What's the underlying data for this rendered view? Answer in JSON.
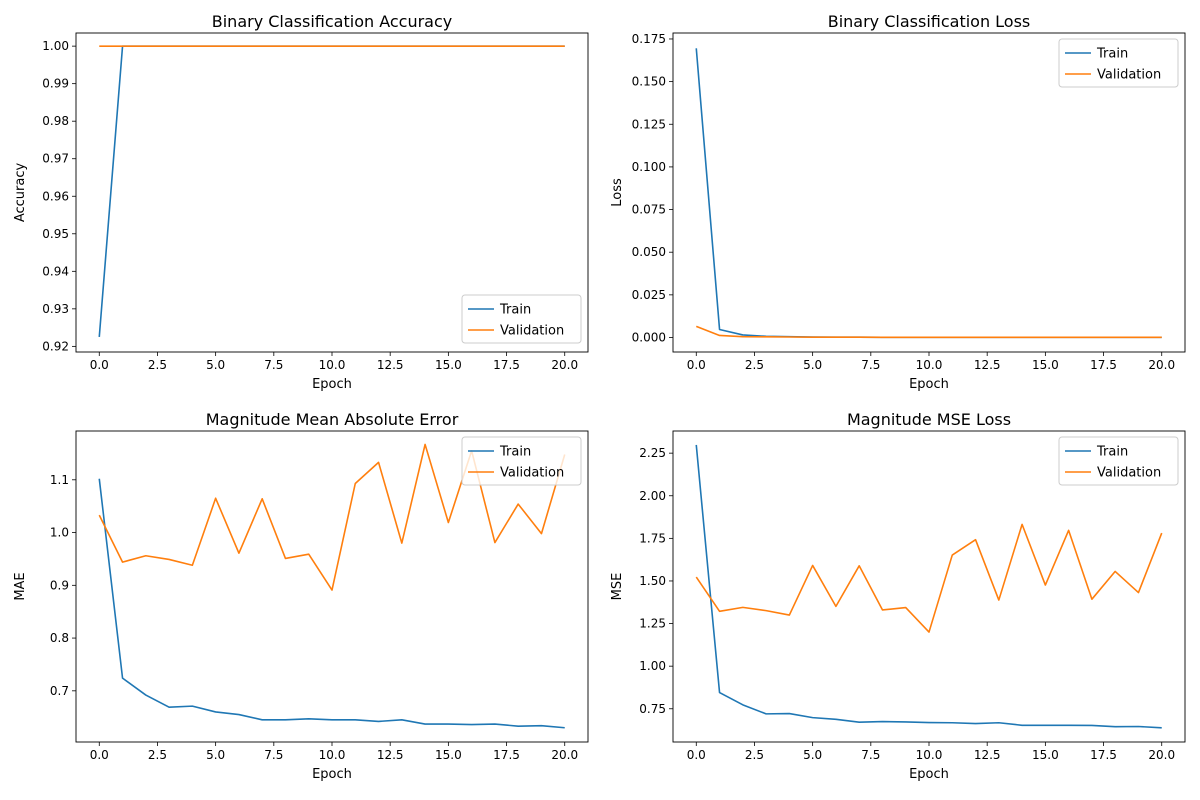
{
  "colors": {
    "train": "#1f77b4",
    "validation": "#ff7f0e"
  },
  "chart_data": [
    {
      "type": "line",
      "title": "Binary Classification Accuracy",
      "xlabel": "Epoch",
      "ylabel": "Accuracy",
      "xlim": [
        -1,
        21
      ],
      "ylim": [
        0.9185,
        1.0035
      ],
      "xticks": [
        0.0,
        2.5,
        5.0,
        7.5,
        10.0,
        12.5,
        15.0,
        17.5,
        20.0
      ],
      "xtick_labels": [
        "0.0",
        "2.5",
        "5.0",
        "7.5",
        "10.0",
        "12.5",
        "15.0",
        "17.5",
        "20.0"
      ],
      "yticks": [
        0.92,
        0.93,
        0.94,
        0.95,
        0.96,
        0.97,
        0.98,
        0.99,
        1.0
      ],
      "ytick_labels": [
        "0.92",
        "0.93",
        "0.94",
        "0.95",
        "0.96",
        "0.97",
        "0.98",
        "0.99",
        "1.00"
      ],
      "legend_position": "lower-right",
      "x": [
        0,
        1,
        2,
        3,
        4,
        5,
        6,
        7,
        8,
        9,
        10,
        11,
        12,
        13,
        14,
        15,
        16,
        17,
        18,
        19,
        20
      ],
      "series": [
        {
          "name": "Train",
          "values": [
            0.9225,
            1.0,
            1.0,
            1.0,
            1.0,
            1.0,
            1.0,
            1.0,
            1.0,
            1.0,
            1.0,
            1.0,
            1.0,
            1.0,
            1.0,
            1.0,
            1.0,
            1.0,
            1.0,
            1.0,
            1.0
          ]
        },
        {
          "name": "Validation",
          "values": [
            1.0,
            1.0,
            1.0,
            1.0,
            1.0,
            1.0,
            1.0,
            1.0,
            1.0,
            1.0,
            1.0,
            1.0,
            1.0,
            1.0,
            1.0,
            1.0,
            1.0,
            1.0,
            1.0,
            1.0,
            1.0
          ]
        }
      ]
    },
    {
      "type": "line",
      "title": "Binary Classification Loss",
      "xlabel": "Epoch",
      "ylabel": "Loss",
      "xlim": [
        -1,
        21
      ],
      "ylim": [
        -0.0085,
        0.1785
      ],
      "xticks": [
        0.0,
        2.5,
        5.0,
        7.5,
        10.0,
        12.5,
        15.0,
        17.5,
        20.0
      ],
      "xtick_labels": [
        "0.0",
        "2.5",
        "5.0",
        "7.5",
        "10.0",
        "12.5",
        "15.0",
        "17.5",
        "20.0"
      ],
      "yticks": [
        0.0,
        0.025,
        0.05,
        0.075,
        0.1,
        0.125,
        0.15,
        0.175
      ],
      "ytick_labels": [
        "0.000",
        "0.025",
        "0.050",
        "0.075",
        "0.100",
        "0.125",
        "0.150",
        "0.175"
      ],
      "legend_position": "top-right",
      "x": [
        0,
        1,
        2,
        3,
        4,
        5,
        6,
        7,
        8,
        9,
        10,
        11,
        12,
        13,
        14,
        15,
        16,
        17,
        18,
        19,
        20
      ],
      "series": [
        {
          "name": "Train",
          "values": [
            0.1695,
            0.0047,
            0.0015,
            0.0007,
            0.0005,
            0.0003,
            0.0002,
            0.0002,
            0.0001,
            0.0001,
            0.0001,
            0.0001,
            0.0001,
            0.0001,
            0.0001,
            0.0001,
            0.0001,
            0.0001,
            0.0001,
            0.0001,
            0.0001
          ]
        },
        {
          "name": "Validation",
          "values": [
            0.0065,
            0.0012,
            0.0005,
            0.0004,
            0.0003,
            0.0002,
            0.0002,
            0.0002,
            0.0001,
            0.0001,
            0.0001,
            0.0001,
            0.0001,
            0.0001,
            0.0001,
            0.0001,
            0.0001,
            0.0001,
            0.0001,
            0.0001,
            0.0001
          ]
        }
      ]
    },
    {
      "type": "line",
      "title": "Magnitude Mean Absolute Error",
      "xlabel": "Epoch",
      "ylabel": "MAE",
      "xlim": [
        -1,
        21
      ],
      "ylim": [
        0.603,
        1.1925
      ],
      "xticks": [
        0.0,
        2.5,
        5.0,
        7.5,
        10.0,
        12.5,
        15.0,
        17.5,
        20.0
      ],
      "xtick_labels": [
        "0.0",
        "2.5",
        "5.0",
        "7.5",
        "10.0",
        "12.5",
        "15.0",
        "17.5",
        "20.0"
      ],
      "yticks": [
        0.7,
        0.8,
        0.9,
        1.0,
        1.1
      ],
      "ytick_labels": [
        "0.7",
        "0.8",
        "0.9",
        "1.0",
        "1.1"
      ],
      "legend_position": "top-right",
      "x": [
        0,
        1,
        2,
        3,
        4,
        5,
        6,
        7,
        8,
        9,
        10,
        11,
        12,
        13,
        14,
        15,
        16,
        17,
        18,
        19,
        20
      ],
      "series": [
        {
          "name": "Train",
          "values": [
            1.102,
            0.724,
            0.692,
            0.669,
            0.671,
            0.66,
            0.655,
            0.645,
            0.645,
            0.647,
            0.645,
            0.645,
            0.642,
            0.645,
            0.637,
            0.637,
            0.636,
            0.637,
            0.633,
            0.634,
            0.63
          ]
        },
        {
          "name": "Validation",
          "values": [
            1.033,
            0.944,
            0.956,
            0.949,
            0.938,
            1.065,
            0.961,
            1.064,
            0.951,
            0.959,
            0.891,
            1.093,
            1.133,
            0.98,
            1.167,
            1.019,
            1.155,
            0.981,
            1.054,
            0.998,
            1.148
          ]
        }
      ]
    },
    {
      "type": "line",
      "title": "Magnitude MSE Loss",
      "xlabel": "Epoch",
      "ylabel": "MSE",
      "xlim": [
        -1,
        21
      ],
      "ylim": [
        0.555,
        2.38
      ],
      "xticks": [
        0.0,
        2.5,
        5.0,
        7.5,
        10.0,
        12.5,
        15.0,
        17.5,
        20.0
      ],
      "xtick_labels": [
        "0.0",
        "2.5",
        "5.0",
        "7.5",
        "10.0",
        "12.5",
        "15.0",
        "17.5",
        "20.0"
      ],
      "yticks": [
        0.75,
        1.0,
        1.25,
        1.5,
        1.75,
        2.0,
        2.25
      ],
      "ytick_labels": [
        "0.75",
        "1.00",
        "1.25",
        "1.50",
        "1.75",
        "2.00",
        "2.25"
      ],
      "legend_position": "top-right",
      "x": [
        0,
        1,
        2,
        3,
        4,
        5,
        6,
        7,
        8,
        9,
        10,
        11,
        12,
        13,
        14,
        15,
        16,
        17,
        18,
        19,
        20
      ],
      "series": [
        {
          "name": "Train",
          "values": [
            2.298,
            0.845,
            0.773,
            0.72,
            0.722,
            0.698,
            0.688,
            0.671,
            0.675,
            0.673,
            0.669,
            0.668,
            0.663,
            0.668,
            0.653,
            0.653,
            0.653,
            0.652,
            0.645,
            0.646,
            0.638
          ]
        },
        {
          "name": "Validation",
          "values": [
            1.523,
            1.322,
            1.345,
            1.326,
            1.3,
            1.591,
            1.351,
            1.589,
            1.33,
            1.344,
            1.2,
            1.652,
            1.742,
            1.388,
            1.832,
            1.476,
            1.797,
            1.393,
            1.556,
            1.432,
            1.781
          ]
        }
      ]
    }
  ]
}
